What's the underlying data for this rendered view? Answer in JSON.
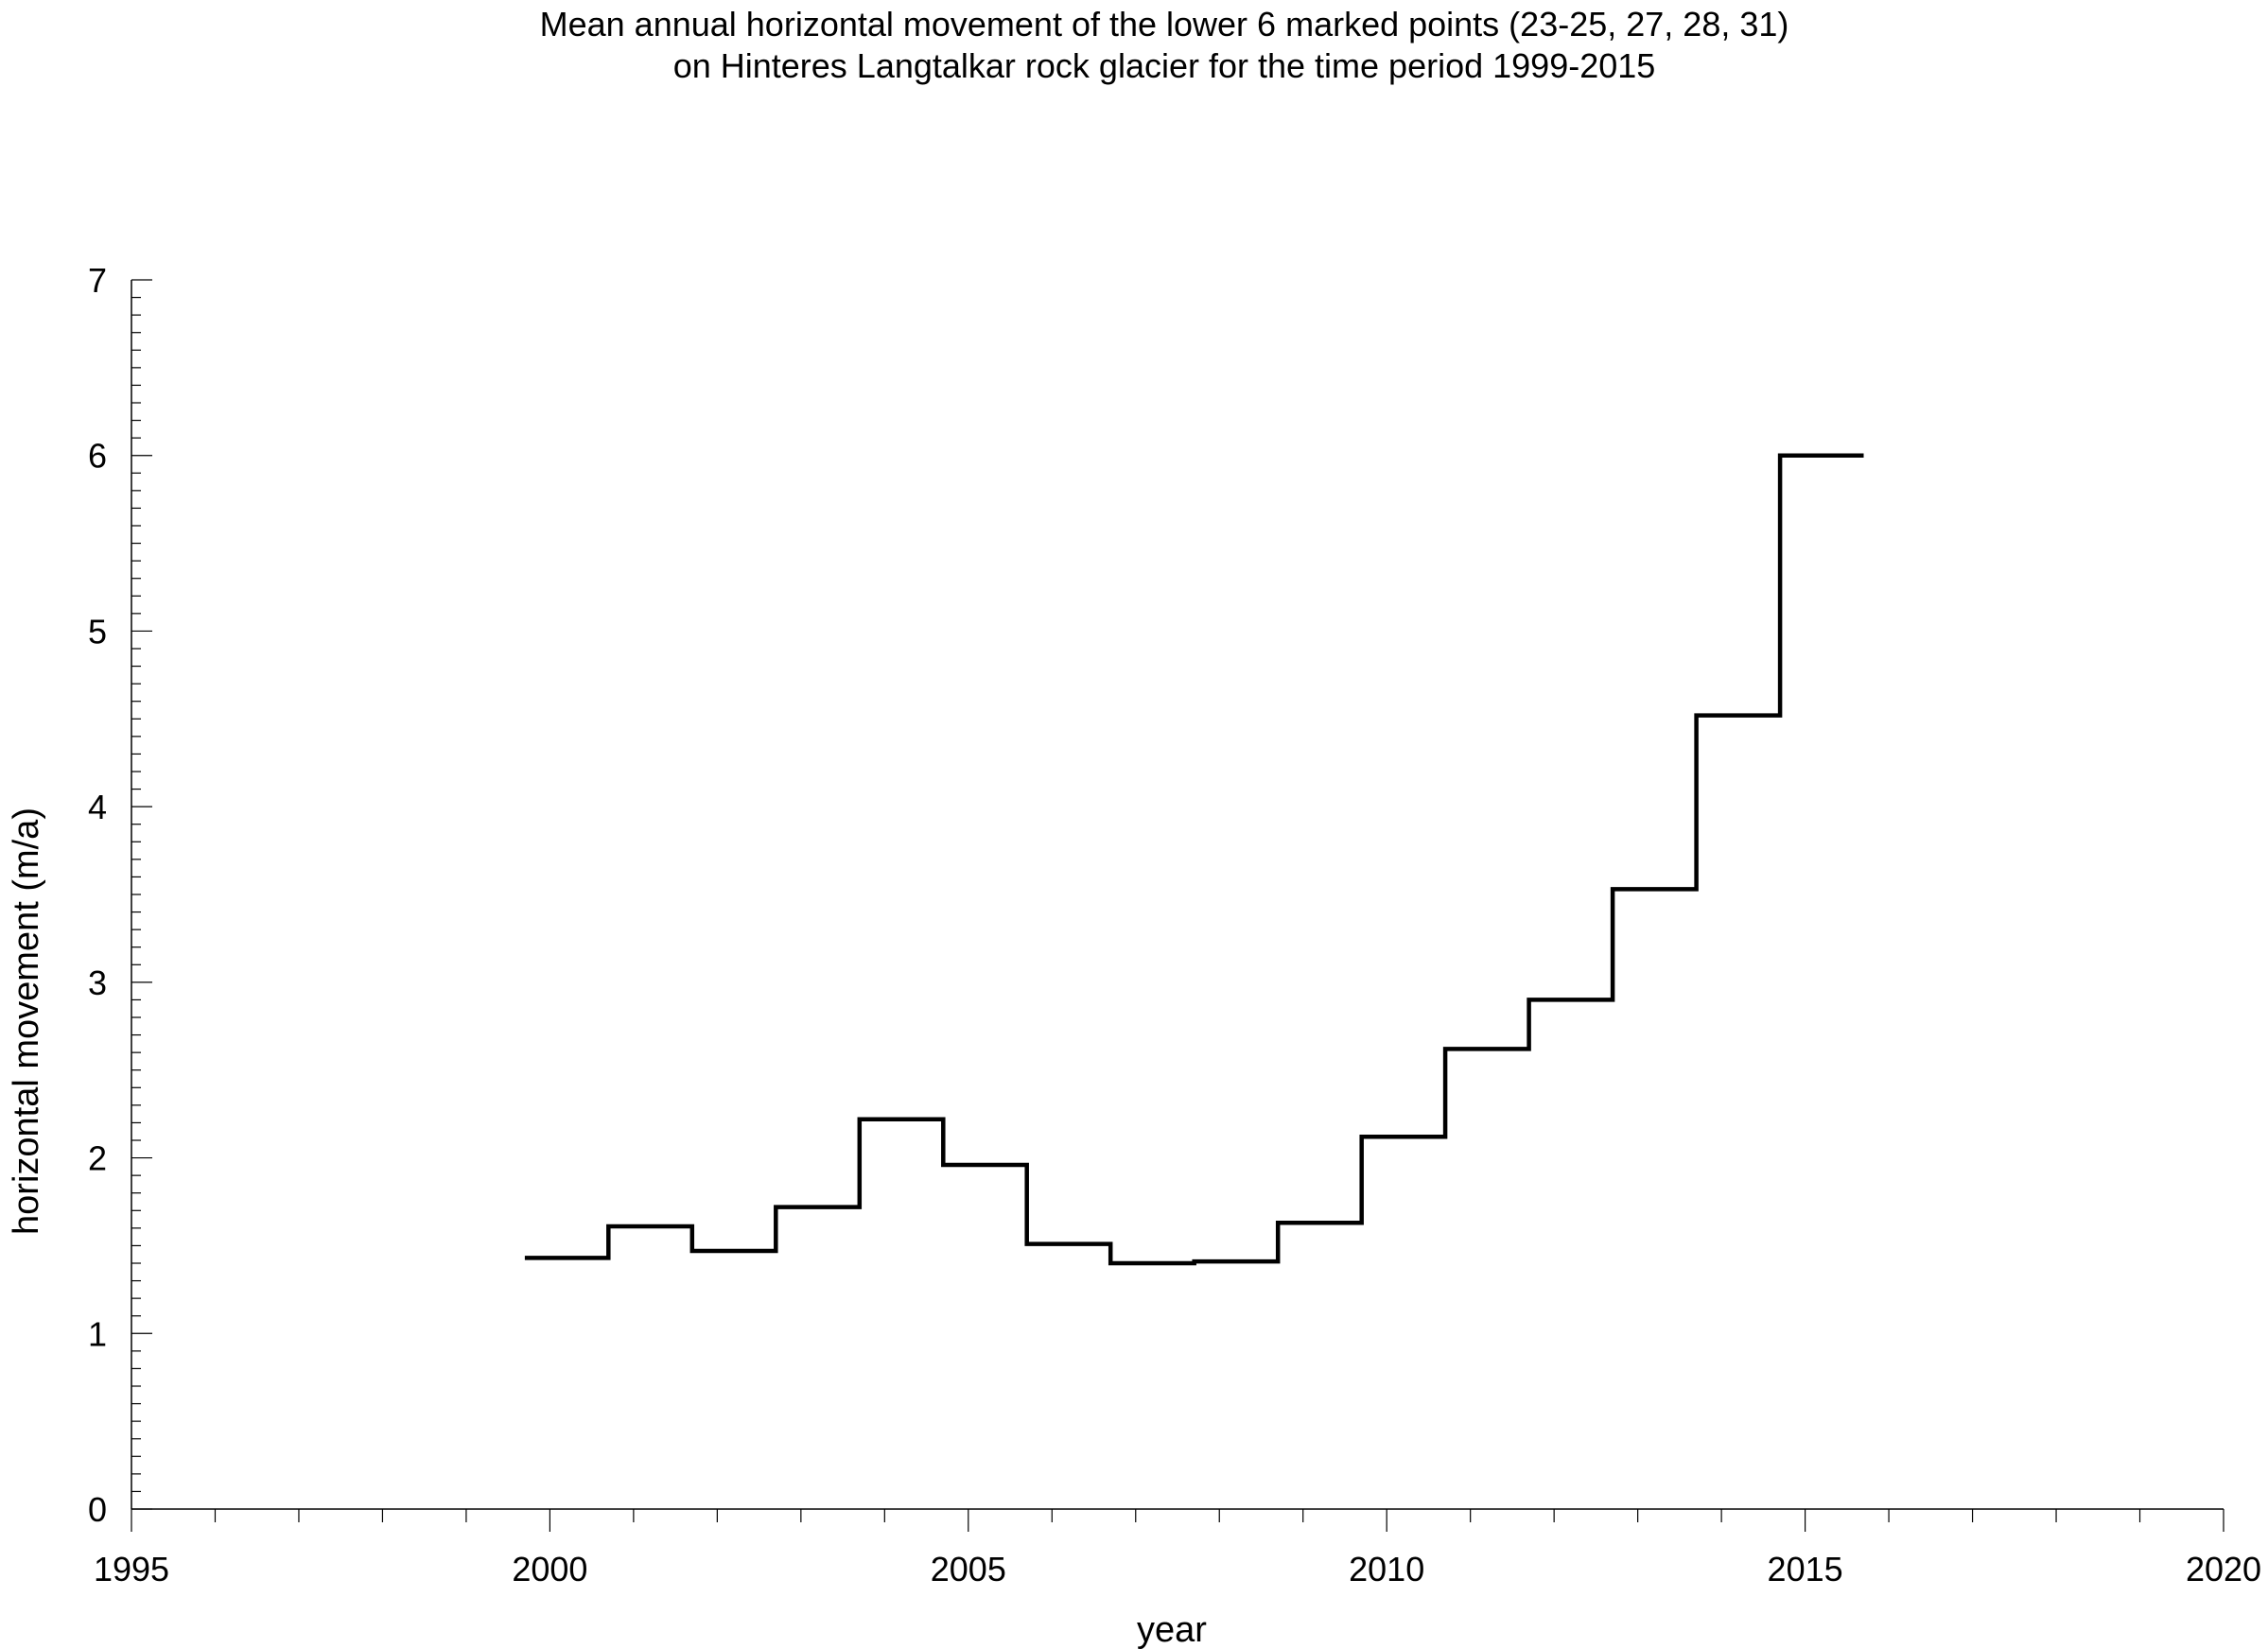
{
  "chart_data": {
    "type": "line",
    "style": "step",
    "title": [
      "Mean annual horizontal movement of the lower 6 marked points (23-25, 27, 28, 31)",
      "on Hinteres Langtalkar rock glacier for the time period 1999-2015"
    ],
    "xlabel": "year",
    "ylabel": "horizontal movement (m/a)",
    "xlim": [
      1995,
      2020
    ],
    "ylim": [
      0,
      7
    ],
    "x_ticks": [
      1995,
      2000,
      2005,
      2010,
      2015,
      2020
    ],
    "y_ticks": [
      0,
      1,
      2,
      3,
      4,
      5,
      6,
      7
    ],
    "x_minor_step": 1,
    "y_minor_step": 0.1,
    "grid": false,
    "series": [
      {
        "color": "#000000",
        "steps": [
          {
            "x0": 1999.7,
            "x1": 2000.7,
            "y": 1.43
          },
          {
            "x0": 2000.7,
            "x1": 2001.7,
            "y": 1.61
          },
          {
            "x0": 2001.7,
            "x1": 2002.7,
            "y": 1.47
          },
          {
            "x0": 2002.7,
            "x1": 2003.7,
            "y": 1.72
          },
          {
            "x0": 2003.7,
            "x1": 2004.7,
            "y": 2.22
          },
          {
            "x0": 2004.7,
            "x1": 2005.7,
            "y": 1.96
          },
          {
            "x0": 2005.7,
            "x1": 2006.7,
            "y": 1.51
          },
          {
            "x0": 2006.7,
            "x1": 2007.7,
            "y": 1.4
          },
          {
            "x0": 2007.7,
            "x1": 2008.7,
            "y": 1.41
          },
          {
            "x0": 2008.7,
            "x1": 2009.7,
            "y": 1.63
          },
          {
            "x0": 2009.7,
            "x1": 2010.7,
            "y": 2.12
          },
          {
            "x0": 2010.7,
            "x1": 2011.7,
            "y": 2.62
          },
          {
            "x0": 2011.7,
            "x1": 2012.7,
            "y": 2.9
          },
          {
            "x0": 2012.7,
            "x1": 2013.7,
            "y": 3.53
          },
          {
            "x0": 2013.7,
            "x1": 2014.7,
            "y": 4.52
          },
          {
            "x0": 2014.7,
            "x1": 2015.7,
            "y": 6.0
          }
        ]
      }
    ]
  }
}
